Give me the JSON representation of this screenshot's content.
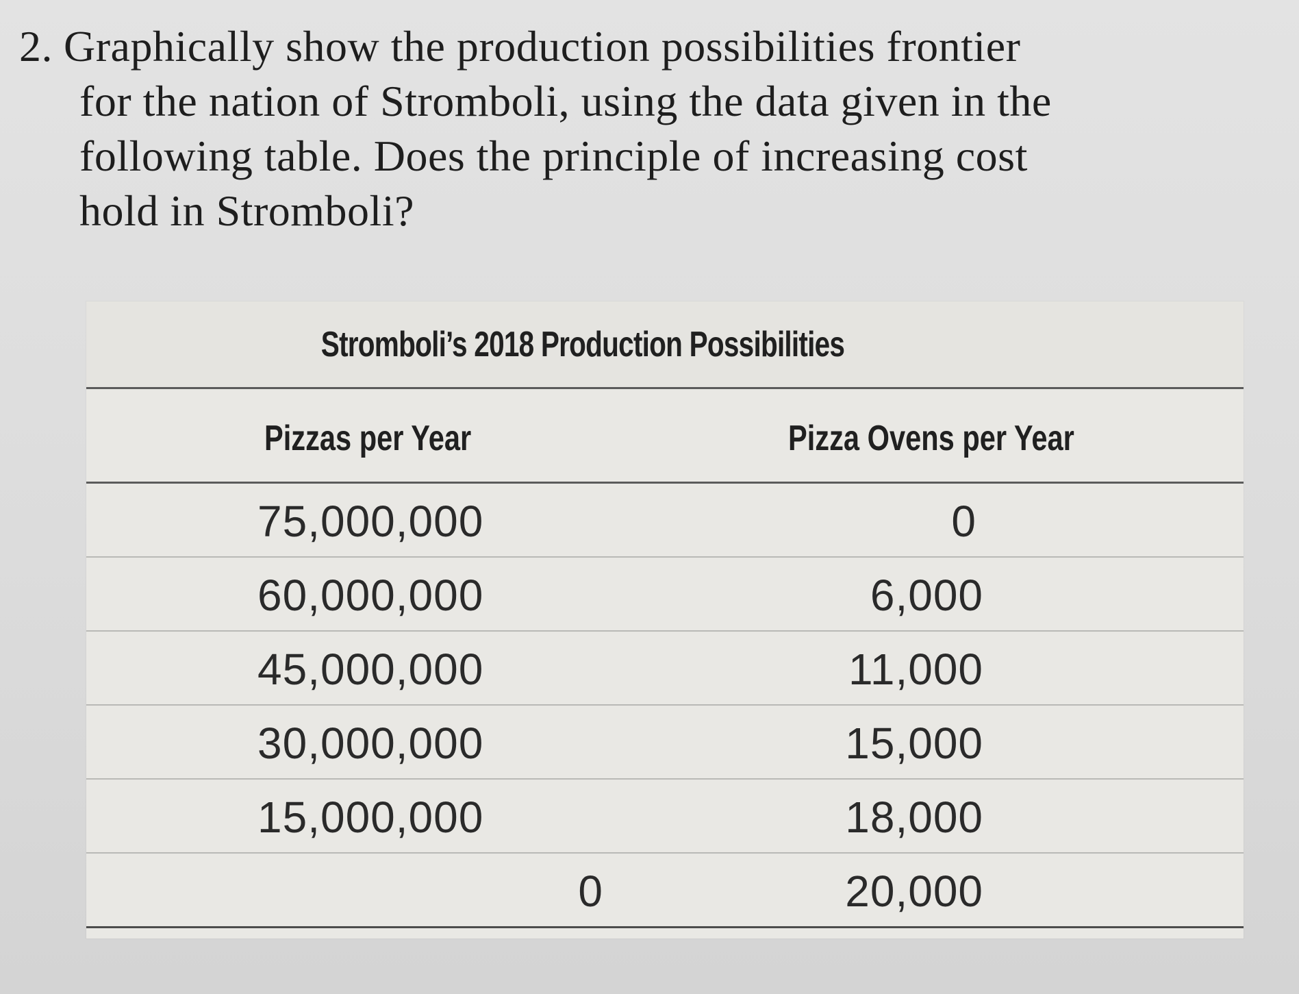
{
  "question": {
    "number": "2.",
    "lines": [
      "Graphically show the production possibilities frontier",
      "for the nation of Stromboli, using the data given in the",
      "following table. Does the principle of increasing cost",
      "hold in Stromboli?"
    ]
  },
  "table": {
    "title": "Stromboli’s 2018 Production Possibilities",
    "columns": [
      "Pizzas per Year",
      "Pizza Ovens per Year"
    ],
    "rows": [
      [
        "75,000,000",
        "0"
      ],
      [
        "60,000,000",
        "6,000"
      ],
      [
        "45,000,000",
        "11,000"
      ],
      [
        "30,000,000",
        "15,000"
      ],
      [
        "15,000,000",
        "18,000"
      ],
      [
        "0",
        "20,000"
      ]
    ]
  }
}
